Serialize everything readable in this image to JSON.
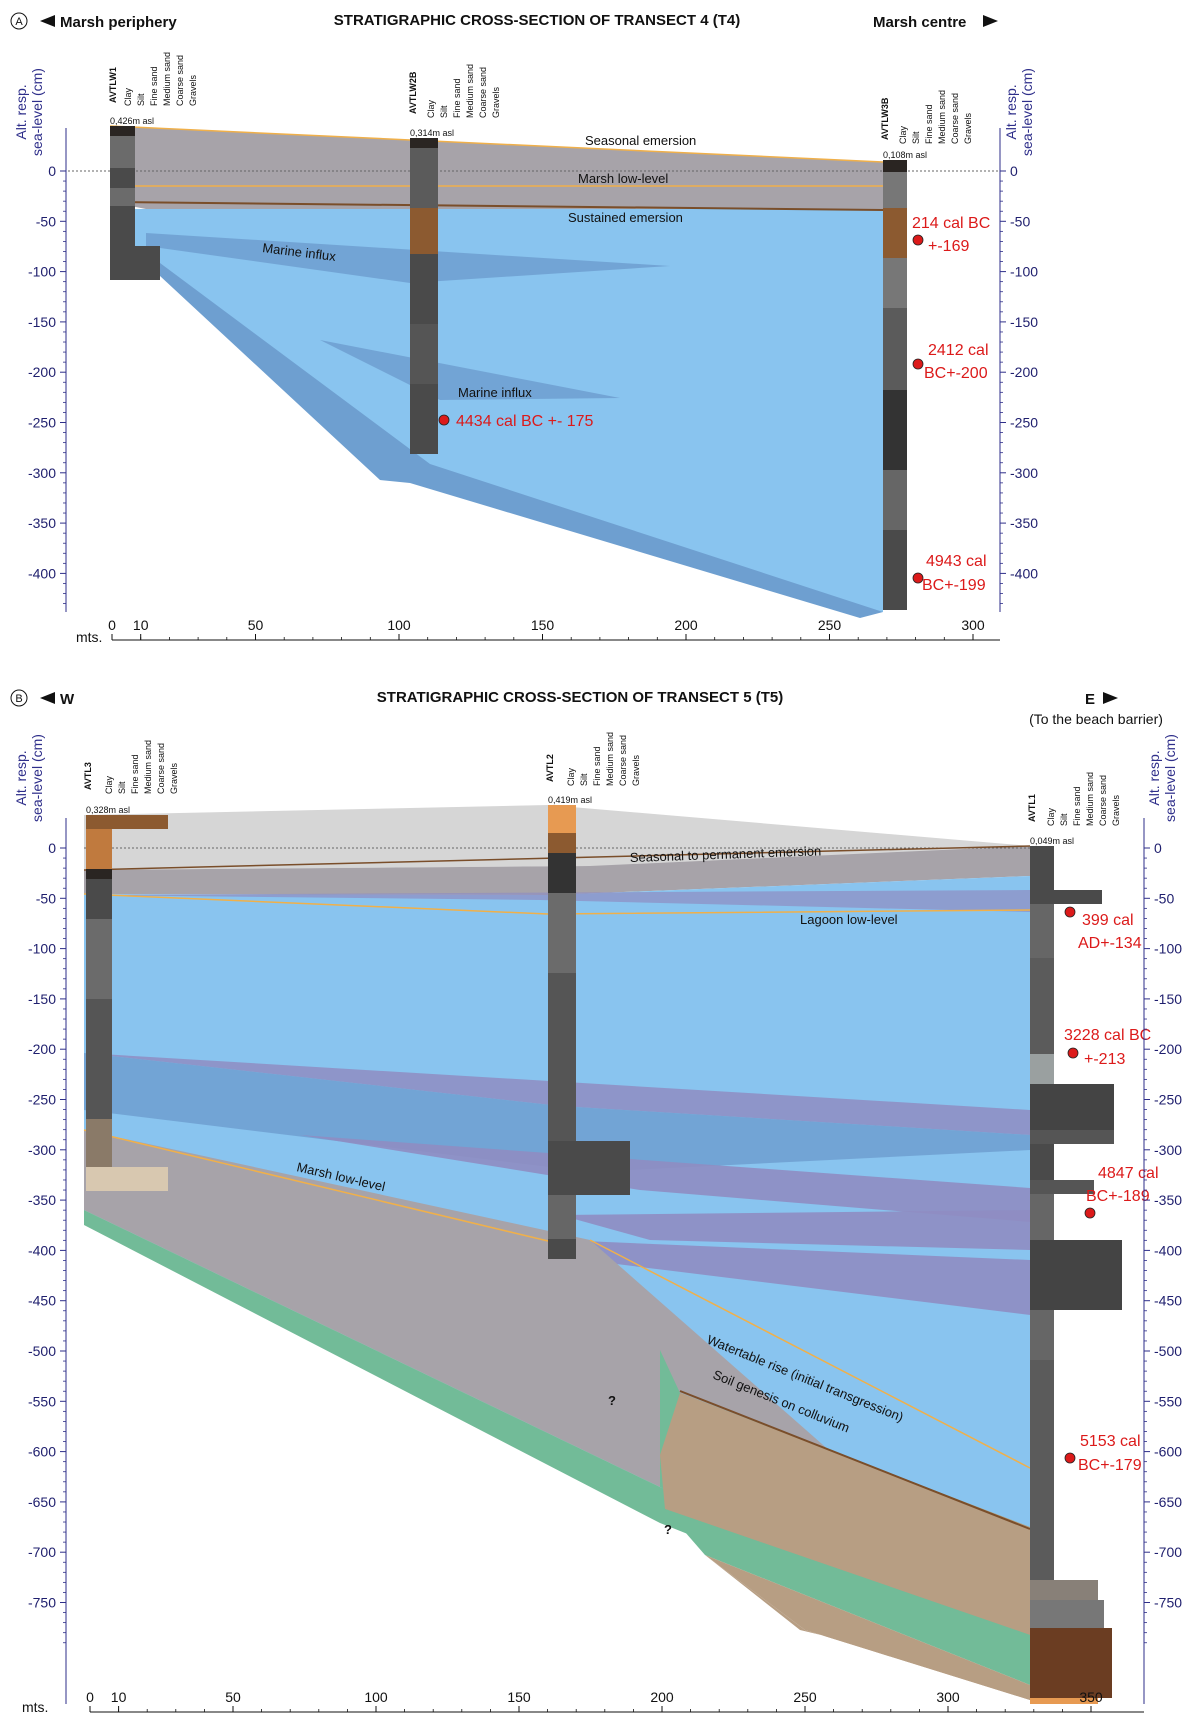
{
  "panel_a": {
    "letter": "A",
    "title": "STRATIGRAPHIC CROSS-SECTION OF TRANSECT 4 (T4)",
    "left_direction": "Marsh periphery",
    "right_direction": "Marsh centre",
    "y_axis_label_line1": "Alt. resp.",
    "y_axis_label_line2": "sea-level (cm)",
    "x_axis_label": "mts.",
    "y_ticks": [
      "0",
      "-50",
      "-100",
      "-150",
      "-200",
      "-250",
      "-300",
      "-350",
      "-400"
    ],
    "x_ticks": [
      "0",
      "10",
      "50",
      "100",
      "150",
      "200",
      "250",
      "300"
    ],
    "grain_labels": [
      "Clay",
      "Silt",
      "Fine sand",
      "Medium sand",
      "Coarse sand",
      "Gravels"
    ],
    "cores": [
      {
        "name": "AVTLW1",
        "elevation": "0,426m asl"
      },
      {
        "name": "AVTLW2B",
        "elevation": "0,314m asl"
      },
      {
        "name": "AVTLW3B",
        "elevation": "0,108m asl"
      }
    ],
    "units": [
      "Seasonal emersion",
      "Marsh low-level",
      "Sustained emersion",
      "Marine influx",
      "Marine influx"
    ],
    "dates": [
      {
        "line1": "214 cal BC",
        "line2": "+-169"
      },
      {
        "line1": "2412 cal",
        "line2": "BC+-200"
      },
      {
        "line1": "4434 cal BC +- 175",
        "line2": ""
      },
      {
        "line1": "4943 cal",
        "line2": "BC+-199"
      }
    ]
  },
  "panel_b": {
    "letter": "B",
    "title": "STRATIGRAPHIC CROSS-SECTION OF TRANSECT 5 (T5)",
    "left_direction": "W",
    "right_direction": "E",
    "right_note": "(To the beach barrier)",
    "y_axis_label_line1": "Alt. resp.",
    "y_axis_label_line2": "sea-level (cm)",
    "x_axis_label": "mts.",
    "y_ticks": [
      "0",
      "-50",
      "-100",
      "-150",
      "-200",
      "-250",
      "-300",
      "-350",
      "-400",
      "-450",
      "-500",
      "-550",
      "-600",
      "-650",
      "-700",
      "-750"
    ],
    "x_ticks": [
      "0",
      "10",
      "50",
      "100",
      "150",
      "200",
      "250",
      "300",
      "350"
    ],
    "grain_labels": [
      "Clay",
      "Silt",
      "Fine sand",
      "Medium sand",
      "Coarse sand",
      "Gravels"
    ],
    "cores": [
      {
        "name": "AVTL3",
        "elevation": "0,328m asl"
      },
      {
        "name": "AVTL2",
        "elevation": "0,419m asl"
      },
      {
        "name": "AVTL1",
        "elevation": "0,049m asl"
      }
    ],
    "units": [
      "Seasonal to permanent emersion",
      "Lagoon low-level",
      "Marsh low-level",
      "Watertable rise (initial transgression)",
      "Soil genesis on colluvium"
    ],
    "unknown_marks": [
      "?",
      "?"
    ],
    "dates": [
      {
        "line1": "399 cal",
        "line2": "AD+-134"
      },
      {
        "line1": "3228 cal BC",
        "line2": "+-213"
      },
      {
        "line1": "4847 cal",
        "line2": "BC+-189"
      },
      {
        "line1": "5153 cal",
        "line2": "BC+-179"
      }
    ]
  },
  "colors": {
    "water": "#89c4ef",
    "marine_influx": "#6e9fd0",
    "marsh_grey": "#a7a3a9",
    "emersion_light": "#d6d6d6",
    "purple_wedge": "#8f8dc2",
    "green_soil": "#72bb98",
    "tan_colluvium": "#b79e83",
    "core_dark": "#4a4a4a",
    "core_mid": "#6b6b6b",
    "core_brown": "#8c5a30",
    "core_orange": "#e79a52",
    "orange_line": "#f0b04a",
    "brown_line": "#7a4e2a",
    "date_red": "#dc1a1a",
    "axis_navy": "#2e2e8a"
  }
}
